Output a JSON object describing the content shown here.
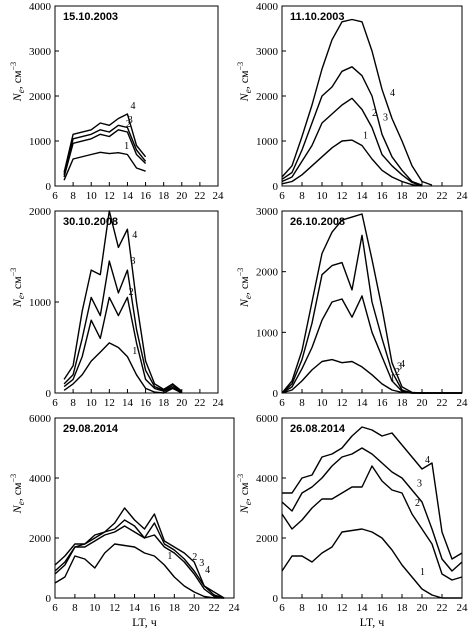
{
  "chart_data": [
    {
      "type": "line",
      "title": "15.10.2003",
      "ylabel": "N_e, см⁻³",
      "xlabel": "",
      "xlim": [
        6,
        24
      ],
      "ylim": [
        0,
        4000
      ],
      "xticks": [
        6,
        8,
        10,
        12,
        14,
        16,
        18,
        20,
        22,
        24
      ],
      "yticks": [
        0,
        1000,
        2000,
        3000,
        4000
      ],
      "series": [
        {
          "name": "1",
          "x": [
            7,
            8,
            10,
            11,
            12,
            13,
            14,
            15,
            16
          ],
          "values": [
            130,
            600,
            700,
            750,
            720,
            740,
            700,
            400,
            330
          ]
        },
        {
          "name": "2",
          "x": [
            7,
            8,
            10,
            11,
            12,
            13,
            14,
            15,
            16
          ],
          "values": [
            200,
            950,
            1050,
            1150,
            1100,
            1250,
            1200,
            700,
            500
          ]
        },
        {
          "name": "3",
          "x": [
            7,
            8,
            10,
            11,
            12,
            13,
            14,
            15,
            16
          ],
          "values": [
            250,
            1050,
            1150,
            1250,
            1200,
            1350,
            1300,
            800,
            550
          ]
        },
        {
          "name": "4",
          "x": [
            7,
            8,
            10,
            11,
            12,
            13,
            14,
            15,
            16
          ],
          "values": [
            300,
            1150,
            1250,
            1400,
            1350,
            1500,
            1600,
            900,
            650
          ]
        }
      ]
    },
    {
      "type": "line",
      "title": "11.10.2003",
      "ylabel": "N_e, см⁻³",
      "xlabel": "",
      "xlim": [
        6,
        24
      ],
      "ylim": [
        0,
        4000
      ],
      "xticks": [
        6,
        8,
        10,
        12,
        14,
        16,
        18,
        20,
        22,
        24
      ],
      "yticks": [
        0,
        1000,
        2000,
        3000,
        4000
      ],
      "series": [
        {
          "name": "1",
          "x": [
            6,
            7,
            8,
            9,
            10,
            11,
            12,
            13,
            14,
            15,
            16,
            17,
            18,
            19,
            20
          ],
          "values": [
            50,
            100,
            250,
            450,
            650,
            850,
            1000,
            1020,
            900,
            600,
            350,
            200,
            100,
            30,
            0
          ]
        },
        {
          "name": "2",
          "x": [
            6,
            7,
            8,
            9,
            10,
            11,
            12,
            13,
            14,
            15,
            16,
            17,
            18,
            19,
            20
          ],
          "values": [
            100,
            200,
            550,
            900,
            1400,
            1600,
            1800,
            1950,
            1700,
            1300,
            700,
            450,
            250,
            80,
            10
          ]
        },
        {
          "name": "3",
          "x": [
            6,
            7,
            8,
            9,
            10,
            11,
            12,
            13,
            14,
            15,
            16,
            17,
            18,
            19,
            20
          ],
          "values": [
            150,
            300,
            800,
            1400,
            2000,
            2200,
            2550,
            2650,
            2450,
            2000,
            1150,
            650,
            350,
            100,
            20
          ]
        },
        {
          "name": "4",
          "x": [
            6,
            7,
            8,
            9,
            10,
            11,
            12,
            13,
            14,
            15,
            16,
            17,
            18,
            19,
            20,
            21
          ],
          "values": [
            200,
            450,
            1100,
            1800,
            2600,
            3250,
            3650,
            3700,
            3650,
            3000,
            2150,
            1500,
            1000,
            450,
            100,
            20
          ]
        }
      ]
    },
    {
      "type": "line",
      "title": "30.10.2008",
      "ylabel": "N_e, см⁻³",
      "xlabel": "",
      "xlim": [
        6,
        24
      ],
      "ylim": [
        0,
        2000
      ],
      "xticks": [
        6,
        8,
        10,
        12,
        14,
        16,
        18,
        20,
        22,
        24
      ],
      "yticks": [
        0,
        1000,
        2000
      ],
      "series": [
        {
          "name": "1",
          "x": [
            7,
            8,
            9,
            10,
            11,
            12,
            13,
            14,
            15,
            16,
            17,
            18,
            19,
            20
          ],
          "values": [
            30,
            100,
            200,
            350,
            450,
            550,
            500,
            400,
            200,
            50,
            10,
            0,
            50,
            0
          ]
        },
        {
          "name": "2",
          "x": [
            7,
            8,
            9,
            10,
            11,
            12,
            13,
            14,
            15,
            16,
            17,
            18,
            19,
            20
          ],
          "values": [
            70,
            150,
            400,
            800,
            600,
            1050,
            850,
            1050,
            550,
            150,
            50,
            20,
            60,
            10
          ]
        },
        {
          "name": "3",
          "x": [
            7,
            8,
            9,
            10,
            11,
            12,
            13,
            14,
            15,
            16,
            17,
            18,
            19,
            20
          ],
          "values": [
            100,
            200,
            600,
            1050,
            850,
            1450,
            1100,
            1350,
            700,
            250,
            70,
            30,
            80,
            15
          ]
        },
        {
          "name": "4",
          "x": [
            7,
            8,
            9,
            10,
            11,
            12,
            13,
            14,
            15,
            16,
            17,
            18,
            19,
            20
          ],
          "values": [
            150,
            300,
            900,
            1350,
            1300,
            2000,
            1600,
            1800,
            1000,
            350,
            100,
            40,
            100,
            20
          ]
        }
      ]
    },
    {
      "type": "line",
      "title": "26.10.2008",
      "ylabel": "N_e, см⁻³",
      "xlabel": "",
      "xlim": [
        6,
        24
      ],
      "ylim": [
        0,
        3000
      ],
      "xticks": [
        6,
        8,
        10,
        12,
        14,
        16,
        18,
        20,
        22,
        24
      ],
      "yticks": [
        0,
        1000,
        2000,
        3000
      ],
      "series": [
        {
          "name": "1",
          "x": [
            6,
            7,
            8,
            9,
            10,
            11,
            12,
            13,
            14,
            15,
            16,
            17,
            18,
            19,
            20,
            22,
            24
          ],
          "values": [
            0,
            50,
            200,
            380,
            520,
            550,
            500,
            520,
            430,
            300,
            150,
            50,
            10,
            0,
            0,
            0,
            0
          ]
        },
        {
          "name": "2",
          "x": [
            6,
            7,
            8,
            9,
            10,
            11,
            12,
            13,
            14,
            15,
            16,
            17,
            18,
            19,
            20,
            22,
            24
          ],
          "values": [
            0,
            100,
            400,
            750,
            1200,
            1500,
            1550,
            1250,
            1600,
            1000,
            600,
            200,
            30,
            0,
            0,
            0,
            0
          ]
        },
        {
          "name": "3",
          "x": [
            6,
            7,
            8,
            9,
            10,
            11,
            12,
            13,
            14,
            15,
            16,
            17,
            18,
            19,
            20,
            22,
            24
          ],
          "values": [
            0,
            150,
            550,
            1150,
            1950,
            2100,
            2150,
            1700,
            2600,
            1500,
            900,
            350,
            50,
            0,
            0,
            0,
            0
          ]
        },
        {
          "name": "4",
          "x": [
            6,
            7,
            8,
            9,
            10,
            11,
            12,
            13,
            14,
            15,
            16,
            17,
            18,
            19,
            20,
            22,
            24
          ],
          "values": [
            0,
            200,
            700,
            1500,
            2300,
            2650,
            2850,
            2900,
            2950,
            2200,
            1400,
            500,
            100,
            10,
            0,
            0,
            0
          ]
        }
      ]
    },
    {
      "type": "line",
      "title": "29.08.2014",
      "ylabel": "N_e, см⁻³",
      "xlabel": "LT, ч",
      "xlim": [
        6,
        24
      ],
      "ylim": [
        0,
        6000
      ],
      "xticks": [
        6,
        8,
        10,
        12,
        14,
        16,
        18,
        20,
        22,
        24
      ],
      "yticks": [
        0,
        2000,
        4000,
        6000
      ],
      "series": [
        {
          "name": "1",
          "x": [
            6,
            7,
            8,
            9,
            10,
            11,
            12,
            13,
            14,
            15,
            16,
            17,
            18,
            19,
            20,
            21,
            22,
            23
          ],
          "values": [
            500,
            700,
            1400,
            1300,
            1000,
            1500,
            1800,
            1750,
            1700,
            1500,
            1400,
            1100,
            700,
            400,
            200,
            50,
            0,
            0
          ]
        },
        {
          "name": "2",
          "x": [
            6,
            7,
            8,
            9,
            10,
            11,
            12,
            13,
            14,
            15,
            16,
            17,
            18,
            19,
            20,
            21,
            22,
            23
          ],
          "values": [
            800,
            1100,
            1700,
            1700,
            1900,
            2100,
            2200,
            2400,
            2200,
            2000,
            2100,
            1700,
            1500,
            1200,
            800,
            300,
            50,
            0
          ]
        },
        {
          "name": "3",
          "x": [
            6,
            7,
            8,
            9,
            10,
            11,
            12,
            13,
            14,
            15,
            16,
            17,
            18,
            19,
            20,
            21,
            22,
            23
          ],
          "values": [
            900,
            1200,
            1700,
            1800,
            2000,
            2200,
            2300,
            2600,
            2400,
            2000,
            2500,
            1800,
            1600,
            1300,
            900,
            400,
            100,
            0
          ]
        },
        {
          "name": "4",
          "x": [
            6,
            7,
            8,
            9,
            10,
            11,
            12,
            13,
            14,
            15,
            16,
            17,
            18,
            19,
            20,
            21,
            22,
            23
          ],
          "values": [
            1100,
            1400,
            1800,
            1800,
            2100,
            2200,
            2500,
            3000,
            2600,
            2300,
            2800,
            1900,
            1700,
            1500,
            1200,
            400,
            200,
            0
          ]
        }
      ]
    },
    {
      "type": "line",
      "title": "26.08.2014",
      "ylabel": "N_e, см⁻³",
      "xlabel": "LT, ч",
      "xlim": [
        6,
        24
      ],
      "ylim": [
        0,
        6000
      ],
      "xticks": [
        6,
        8,
        10,
        12,
        14,
        16,
        18,
        20,
        22,
        24
      ],
      "yticks": [
        0,
        2000,
        4000,
        6000
      ],
      "series": [
        {
          "name": "1",
          "x": [
            6,
            7,
            8,
            9,
            10,
            11,
            12,
            13,
            14,
            15,
            16,
            17,
            18,
            19,
            20,
            21,
            22,
            23,
            24
          ],
          "values": [
            900,
            1400,
            1400,
            1200,
            1500,
            1700,
            2200,
            2250,
            2300,
            2200,
            2000,
            1600,
            1100,
            700,
            300,
            100,
            0,
            0,
            0
          ]
        },
        {
          "name": "2",
          "x": [
            6,
            7,
            8,
            9,
            10,
            11,
            12,
            13,
            14,
            15,
            16,
            17,
            18,
            19,
            20,
            21,
            22,
            23,
            24
          ],
          "values": [
            2800,
            2300,
            2600,
            3000,
            3300,
            3300,
            3500,
            3700,
            3700,
            4400,
            3900,
            3600,
            3500,
            2800,
            2300,
            1800,
            800,
            600,
            700
          ]
        },
        {
          "name": "3",
          "x": [
            6,
            7,
            8,
            9,
            10,
            11,
            12,
            13,
            14,
            15,
            16,
            17,
            18,
            19,
            20,
            21,
            22,
            23,
            24
          ],
          "values": [
            3200,
            2900,
            3500,
            3700,
            4000,
            4400,
            4700,
            4800,
            5000,
            4800,
            4500,
            4200,
            4000,
            3600,
            3200,
            2300,
            1300,
            900,
            1200
          ]
        },
        {
          "name": "4",
          "x": [
            6,
            7,
            8,
            9,
            10,
            11,
            12,
            13,
            14,
            15,
            16,
            17,
            18,
            19,
            20,
            21,
            22,
            23,
            24
          ],
          "values": [
            3500,
            3500,
            4000,
            4100,
            4700,
            4800,
            5000,
            5400,
            5700,
            5600,
            5400,
            5500,
            5100,
            4700,
            4300,
            4500,
            2200,
            1300,
            1500
          ]
        }
      ]
    }
  ]
}
